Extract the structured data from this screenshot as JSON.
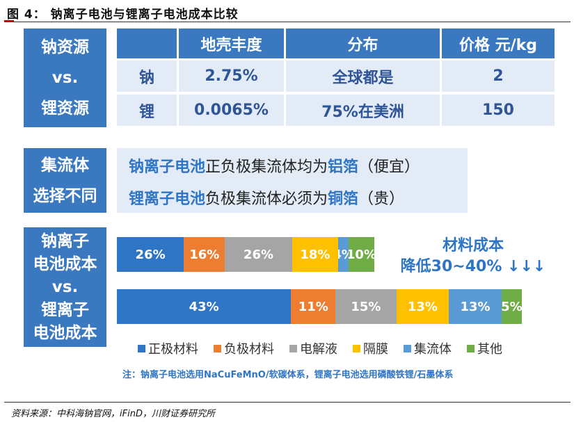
{
  "figure_title": "图 4：  钠离子电池与锂离子电池成本比较",
  "resource": {
    "side_label": [
      "钠资源",
      "vs.",
      "锂资源"
    ],
    "headers": [
      "地壳丰度",
      "分布",
      "价格 元/kg"
    ],
    "rows": [
      {
        "element": "钠",
        "abundance": "2.75%",
        "distribution": "全球都是",
        "price": "2"
      },
      {
        "element": "锂",
        "abundance": "0.0065%",
        "distribution": "75%在美洲",
        "price": "150"
      }
    ]
  },
  "collector": {
    "side_label": [
      "集流体",
      "选择不同"
    ],
    "line1": {
      "hl1": "钠离子电池",
      "mid": "正负极集流体均为",
      "hl2": "铝箔",
      "tail": "（便宜）"
    },
    "line2": {
      "hl1": "锂离子电池",
      "mid": "负极集流体必须为",
      "hl2": "铜箔",
      "tail": "（贵）"
    }
  },
  "cost": {
    "side_label": [
      "钠离子",
      "电池成本",
      "vs.",
      "锂离子",
      "电池成本"
    ],
    "annotation_line1": "材料成本",
    "annotation_line2": "降低30~40% ↓↓↓",
    "note": "注：钠离子电池选用NaCuFeMnO/软碳体系，锂离子电池选用磷酸铁锂/石墨体系"
  },
  "chart_data": {
    "type": "bar",
    "orientation": "horizontal",
    "stacked": true,
    "categories": [
      "正极材料",
      "负极材料",
      "电解液",
      "隔膜",
      "集流体",
      "其他"
    ],
    "colors": [
      "#2e75c6",
      "#ed7d31",
      "#a5a5a5",
      "#ffc000",
      "#5b9bd5",
      "#70ad47"
    ],
    "series": [
      {
        "values": [
          26,
          16,
          26,
          18,
          4,
          10
        ],
        "labels": [
          "26%",
          "16%",
          "26%",
          "18%",
          "4%",
          "10%"
        ]
      },
      {
        "values": [
          43,
          11,
          15,
          13,
          13,
          5
        ],
        "labels": [
          "43%",
          "11%",
          "15%",
          "13%",
          "13%",
          "5%"
        ]
      }
    ],
    "legend": [
      "正极材料",
      "负极材料",
      "电解液",
      "隔膜",
      "集流体",
      "其他"
    ],
    "legend_position": "bottom"
  },
  "source": "资料来源：中科海钠官网，iFinD，川财证券研究所"
}
